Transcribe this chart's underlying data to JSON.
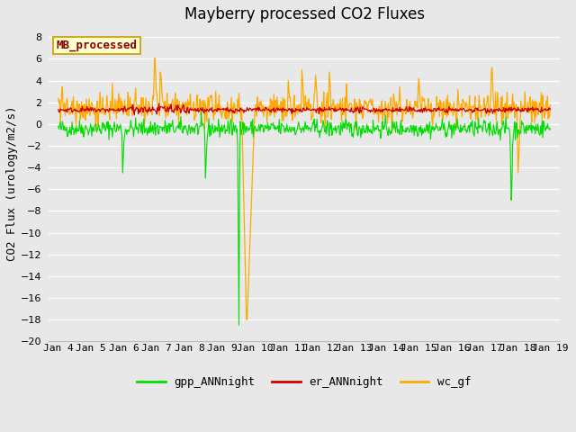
{
  "title": "Mayberry processed CO2 Fluxes",
  "ylabel": "CO2 Flux (urology/m2/s)",
  "ylim": [
    -20,
    9
  ],
  "yticks": [
    -20,
    -18,
    -16,
    -14,
    -12,
    -10,
    -8,
    -6,
    -4,
    -2,
    0,
    2,
    4,
    6,
    8
  ],
  "fig_bg_color": "#e8e8e8",
  "plot_bg_color": "#e8e8e8",
  "grid_color": "#ffffff",
  "legend_label": "MB_processed",
  "legend_box_facecolor": "#ffffcc",
  "legend_box_edgecolor": "#cc9900",
  "line_colors": {
    "gpp": "#00dd00",
    "er": "#cc0000",
    "wc": "#ffaa00"
  },
  "line_widths": {
    "gpp": 0.8,
    "er": 0.9,
    "wc": 0.9
  },
  "legend_entries": [
    "gpp_ANNnight",
    "er_ANNnight",
    "wc_gf"
  ],
  "n_points": 720,
  "seed": 42,
  "x_tick_labels": [
    "Jan 4",
    "Jan 5",
    "Jan 6",
    "Jan 7",
    "Jan 8",
    "Jan 9",
    "Jan 10",
    "Jan 11",
    "Jan 12",
    "Jan 13",
    "Jan 14",
    "Jan 15",
    "Jan 16",
    "Jan 17",
    "Jan 18",
    "Jan 19"
  ],
  "title_fontsize": 12,
  "axis_label_fontsize": 9,
  "tick_fontsize": 8,
  "legend_fontsize": 9,
  "annotation_fontsize": 9
}
